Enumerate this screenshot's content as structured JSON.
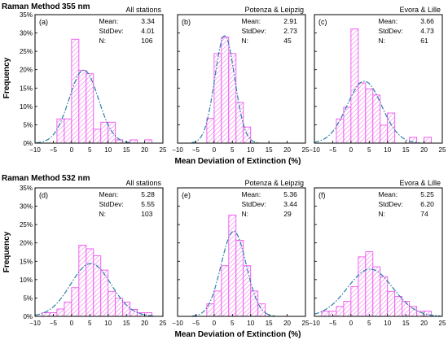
{
  "figure": {
    "row_titles": [
      {
        "method": "Raman Method",
        "wavelength": "355 nm"
      },
      {
        "method": "Raman Method",
        "wavelength": "532 nm"
      }
    ],
    "ylabel": "Frequency",
    "xlabel": "Mean Deviation of Extinction (%)",
    "stat_labels": {
      "mean": "Mean:",
      "std": "StdDev:",
      "n": "N:"
    },
    "colors": {
      "bar_edge": "#ee55ee",
      "hatch": "#f070f0",
      "fit": "#2a7fa8",
      "axis": "#000000"
    }
  },
  "chart_data": [
    {
      "type": "bar",
      "panel": "(a)",
      "title": "All stations",
      "mean": "3.34",
      "std": "4.01",
      "n": "106",
      "xlim": [
        -10,
        25
      ],
      "ylim": [
        0,
        0.35
      ],
      "xticks": [
        -10,
        -5,
        0,
        5,
        10,
        15,
        20,
        25
      ],
      "yticks": [
        0,
        0.05,
        0.1,
        0.15,
        0.2,
        0.25,
        0.3,
        0.35
      ],
      "ytick_labels": [
        "0%",
        "5%",
        "10%",
        "15%",
        "20%",
        "25%",
        "30%",
        "35%"
      ],
      "bin_edges": [
        -4,
        -2,
        0,
        2,
        4,
        6,
        8,
        10,
        12,
        14,
        16,
        18,
        20,
        22
      ],
      "values": [
        0.066,
        0.066,
        0.283,
        0.198,
        0.189,
        0.038,
        0.057,
        0.057,
        0.009,
        0,
        0.009,
        0,
        0.009
      ],
      "fit": {
        "mu": 3.34,
        "sigma": 4.01
      }
    },
    {
      "type": "bar",
      "panel": "(b)",
      "title": "Potenza & Leipzig",
      "mean": "2.91",
      "std": "2.73",
      "n": "45",
      "xlim": [
        -10,
        25
      ],
      "ylim": [
        0,
        0.35
      ],
      "xticks": [
        -10,
        -5,
        0,
        5,
        10,
        15,
        20,
        25
      ],
      "yticks": [
        0,
        0.05,
        0.1,
        0.15,
        0.2,
        0.25,
        0.3,
        0.35
      ],
      "bin_edges": [
        -2,
        0,
        2,
        4,
        6,
        8,
        10
      ],
      "values": [
        0.067,
        0.244,
        0.289,
        0.244,
        0.111,
        0.044
      ],
      "fit": {
        "mu": 2.91,
        "sigma": 2.73
      }
    },
    {
      "type": "bar",
      "panel": "(c)",
      "title": "Evora & Lille",
      "mean": "3.66",
      "std": "4.73",
      "n": "61",
      "xlim": [
        -10,
        25
      ],
      "ylim": [
        0,
        0.35
      ],
      "xticks": [
        -10,
        -5,
        0,
        5,
        10,
        15,
        20,
        25
      ],
      "yticks": [
        0,
        0.05,
        0.1,
        0.15,
        0.2,
        0.25,
        0.3,
        0.35
      ],
      "bin_edges": [
        -4,
        -2,
        0,
        2,
        4,
        6,
        8,
        10,
        12,
        14,
        16,
        18,
        20,
        22
      ],
      "values": [
        0.066,
        0.098,
        0.311,
        0.164,
        0.148,
        0.131,
        0.049,
        0.082,
        0,
        0,
        0.016,
        0,
        0.016
      ],
      "fit": {
        "mu": 3.66,
        "sigma": 4.73
      }
    },
    {
      "type": "bar",
      "panel": "(d)",
      "title": "All stations",
      "mean": "5.28",
      "std": "5.55",
      "n": "103",
      "xlim": [
        -10,
        25
      ],
      "ylim": [
        0,
        0.35
      ],
      "xticks": [
        -10,
        -5,
        0,
        5,
        10,
        15,
        20,
        25
      ],
      "yticks": [
        0,
        0.05,
        0.1,
        0.15,
        0.2,
        0.25,
        0.3,
        0.35
      ],
      "ytick_labels": [
        "0%",
        "5%",
        "10%",
        "15%",
        "20%",
        "25%",
        "30%",
        "35%"
      ],
      "bin_edges": [
        -8,
        -6,
        -4,
        -2,
        0,
        2,
        4,
        6,
        8,
        10,
        12,
        14,
        16,
        18,
        20,
        22
      ],
      "values": [
        0.01,
        0.01,
        0.02,
        0.039,
        0.078,
        0.194,
        0.184,
        0.165,
        0.126,
        0.068,
        0.049,
        0.039,
        0.019,
        0.01,
        0.01
      ],
      "fit": {
        "mu": 5.28,
        "sigma": 5.55
      }
    },
    {
      "type": "bar",
      "panel": "(e)",
      "title": "Potenza & Leipzig",
      "mean": "5.36",
      "std": "3.44",
      "n": "29",
      "xlim": [
        -10,
        25
      ],
      "ylim": [
        0,
        0.35
      ],
      "xticks": [
        -10,
        -5,
        0,
        5,
        10,
        15,
        20,
        25
      ],
      "yticks": [
        0,
        0.05,
        0.1,
        0.15,
        0.2,
        0.25,
        0.3,
        0.35
      ],
      "bin_edges": [
        -2,
        0,
        2,
        4,
        6,
        8,
        10,
        12,
        14
      ],
      "values": [
        0.034,
        0.069,
        0.138,
        0.276,
        0.207,
        0.138,
        0.069,
        0.034
      ],
      "fit": {
        "mu": 5.36,
        "sigma": 3.44
      }
    },
    {
      "type": "bar",
      "panel": "(f)",
      "title": "Evora & Lille",
      "mean": "5.25",
      "std": "6.20",
      "n": "74",
      "xlim": [
        -10,
        25
      ],
      "ylim": [
        0,
        0.35
      ],
      "xticks": [
        -10,
        -5,
        0,
        5,
        10,
        15,
        20,
        25
      ],
      "yticks": [
        0,
        0.05,
        0.1,
        0.15,
        0.2,
        0.25,
        0.3,
        0.35
      ],
      "bin_edges": [
        -8,
        -6,
        -4,
        -2,
        0,
        2,
        4,
        6,
        8,
        10,
        12,
        14,
        16,
        18,
        20,
        22
      ],
      "values": [
        0.014,
        0.014,
        0.027,
        0.041,
        0.081,
        0.162,
        0.176,
        0.135,
        0.108,
        0.068,
        0.054,
        0.041,
        0.027,
        0.014,
        0.014
      ],
      "fit": {
        "mu": 5.25,
        "sigma": 6.2
      }
    }
  ]
}
